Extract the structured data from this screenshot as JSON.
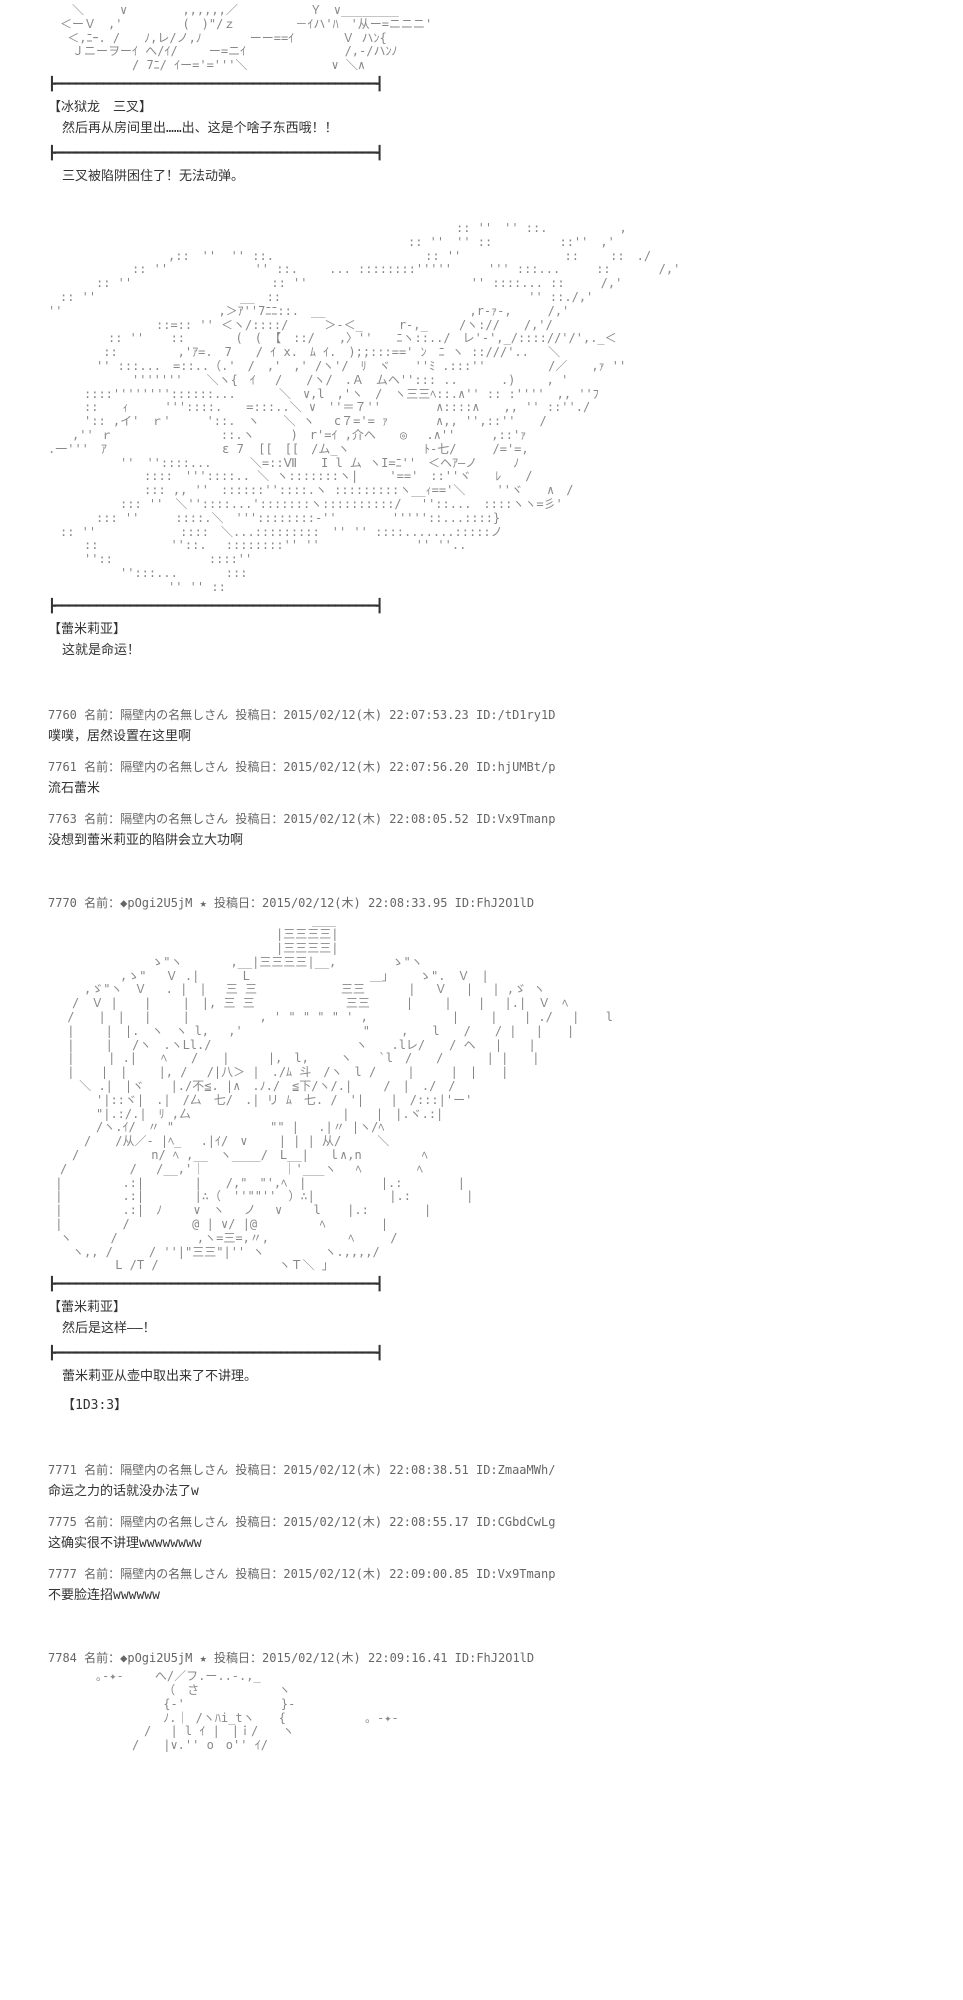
{
  "art": {
    "top_fragment": "　　＼　　　∨　　　　 ,,,,,,／　　　　　　Ｙ　∨________\n　＜ーＶ　,'　　　　　(　)\"/ｚ　　　　　－ｲハ'ﾊ　'从ー=ニニニ'\n　 ＜,ﾆｰ. /　　ﾉ,レ/ノ,ﾉ　　　　ーー==ｲ　　　　Ｖ ハﾝ{\n　　Ｊニーヲーｲ へ/ｲ/　 　ー=ニｲ　　　　　　　  /,-/ハﾝﾉ\n　　　　　　　/ 7ﾆ/ ｲー='='''＼　　　　　　　∨ ＼∧",
    "monster": "　　　　　　　　　　　　　　　　　　　　　　　　　　　　　　　　　　:: ''　'' ::.　　　　　　,\n　　　　　　　　　　　　　　　　　　　　　　　　　　　　　　:: ''　'' ::　　　　　 ::''　,'\n　　　　　　　　　　,::　''  '' ::. 　　　　　　　　　　　　:: ''　　　　　　　　 ::　　 ::　./\n　　　　　　　:: '' 　　　　　　 '' ::. 　　... ::::::::'''''　　　''' :::...　　　::　　　　/,'\n　　　　:: ''　　　　　　　　　　　 :: '' 　　　　　　　　　　　　　'' ::::... ::　　　/,'\n　:: ''　　　　　　　　　　　　__　::　　　　　　　　　　　　　　　　　　　　 '' ::./,'\n''　　　　　　　　　　　　　,＞ｱ''7ﾆﾆ::.　__　　　　　　　　　　　　,r-ｧ-,　　　/,'\n　　　　　　　　　::=:: '' ＜ヽ/::::/　　　＞-＜_　　　r-,_　　 /ヽ://　　/,'/\n　　　　　:: '' 　 :: 　　　 (　( 【　::/　　,〉''　　ﾆヽ::../　レ'-',_/:::://'/',._＜\n　　　　 ::　　　　　,'ｱ=.　7　　/ ｲ x.　ﾑ ｲ.　);;:::==' ﾝ　ﾆ ヽ ::///'.. 　＼\n　　　　'' :::...　=::..（.'　/　,'　,' /ヽ'/　ﾘ　ヾ　　''ﾐ .:::''　　　 　 /／　　,ｧ ''\n　　　　　　　'''''''　　＼ヽ{　ｲ　 /　　/ヽ/　.Ａ　ムヘ''::: ..　　　 .)　　 , '\n　　　::::''''''''::::::...　　　 ＼　∨,l　,'ヽ　/　ヽ三三ﾍ::.∧'' :: :''''　,, ''ﾌ\n　　　::　　ｨ　　　'''::::.　　=:::..＼ ∨　''＝７''　　　　 ∧::::∧　　,, '' ::''./\n　　　':: ,イ'　ｒ'　　　'::.　ヽ　　＼ ヽ　 c７='= ｧ　　　　∧,, '',::''　　/\n　　,'' ｒ　　　　　　　　　::.ヽ　　　)　r'=ｲ ,介ヘ　　◎ 　.∧''　　　,::'ｧ\n.一'''　ｱ　　　　　　　　　 ε 7  [[　[[　/ム_ヽ　　　　 　 ﾄ-七/　　　/='=,\n　　　　　　''　''::::... 　　 ＼=::Ⅶ　　I l ム ヽI=ﾆ''　＜ヘｱ―ノ　　　ﾉ\n　　　　　　　　::::　'''::::.. ＼ ヽ:::::::ヽ|　 　'=='　::''ヾ　　ﾚ　　/\n　　　　　　　　::: ,, ''　::::::''::::.ヽ :::::::::ヽ__ｨ=='＼　　 ''ヾ　　∧　/\n　　　　　　::: ''　＼''::::...':::::::ヽ::::::::::/　 ''::...　::::ヽヽ=彡'\n　　　　::: ''　　　::::.＼　'''::::::::-''　　　　 '''''::...::::}\n　:: ''　　　　　　　::::　＼...:::::::::　'' '' ::::.......:::::ノ\n　　　::　　　　　　''::.　 ::::::::'' ''　　　　　　　　'' ''..\n　　　''::　　　　　　　　::::''\n　　　　　　'':::...　　　　:::\n　　　　　　　　　　'' '' ::",
    "girl": "　　　　　　　　　　　　　　　　　　　　　　＿＿\n　　　　　　　　　　　　　　　　　　　|三三三三|\n　　　　　　　　　　　　　　　　　　　|三三三三|\n　　　　　　　　 ゝ\"ヽ　　　　,__|三三三三|__,　　　　 ゝ\"ヽ\n　　　　　　,ゝ\"　 Ｖ .|　　 　L　　　　　　　　　　＿」　　 ゝ\".　Ｖ　|\n　　　,ゞ\"ヽ　Ｖ　 . |　|　 三 三　　　　　　　三三　　 　| 　Ｖ　 | 　| ,ゞ ヽ\n　　/　Ｖ | 　 |　　 |　|, 三 三 　　　　　　　三三　　　| 　　| 　 | 　|.|　Ｖ　ﾍ\n　 /　　|　|　 |　　 | 　 　 　　, ' \" \" \" \" ' ,　　　　　　　|　　 | 　 | ./ 　| 　 l\n　 | 　　|　|.　ヽ　ヽ l,　 ,'　　　　　　　　　　\"　　 ,　　l　　/　　/ | 　|　　|\n　 | 　　| 　/ヽ　.ヽLl./　　　　　　　　　　　　ヽ　　.lレ/　　/ ヘ 　| 　 |\n　 |  　 | .|　　ﾍ　　/　　|　 　 |,　l,　 　ヽ 　 `l　/　　/　　　 | |　　|\n　 | 　 |　|　　 |, /　 /|八＞ |　./ﾑ 斗　/ヽ　l /　　 |　　　|　|　　|\n　 　＼ .|　|ヾ 　 |./不≦. |∧　.ﾉ./　≦下/ヽ/.| 　　/　|　./　/\n　　　　'|::ヾ|　.|　/厶　七/　.| リ ﾑ　七. /　'| 　 |　/:::|'ー'\n　　　　\"|.:/.|　ﾘ ,厶　　　　　　　　　　　　 | 　 |　|.ヾ.:|\n　　　　/ヽ.ｲ/　〃 \"　　　　　　　　\"\" |　 .|〃 |ヽ/ﾍ\n　　　/　　/从／- |ﾍ_　 .|ｲ/　∨ 　　| | | 从/　　　＼\n　　/　　　　　　n/ ﾍ ,__　ヽ____/　L__|　 ｌ∧,n　　　　　ﾍ\n　/ 　　　　 /　 /__,'｜　　　　　 　｜'___ヽ　 ﾍ 　　　　ﾍ\n |　　　　　.:|　　 　 |　　/,\"　\"',ﾍ　|　　　　　  |.:　　　　 |\n |　　　　　.:|　　 　 |∴（　''\"\"''　）∴|　　　　　  |.:　　　　 |\n |　　　　　.:|　ﾉ　　 ∨　ヽ　 ノ　 ∨ 　　l　  |.:　　　　 |\n |　　　　　/ 　 　　　@ | ∨/ |@　　　 　 ﾍ　　　　 |\n　ヽ　 　 / 　　　　　　,ヽ=三=,〃,　　　　　　 ﾍ　　　/\n　　ヽ,, /　　　/ ''|\"三三\"|'' ヽ　　　　　ヽ.,,,,/\n　　　　　 L /Т /　　　　　　　　　　ヽＴ＼ 」",
    "bottom_fragment": "　　　　｡-✦-　　 へ/／フ.ー..-.,_\n　　　　　　　　　 （　さ　　　　　　 ヽ\n　　　　　　　　　 {-'　　　　　　　　}-\n　　　　　　　　　 ﾉ.｜ /ヽﾊi_tヽ　　{　　　　　　 。-✦-\n　　　　　　　　/　 | l ｲ |　|ｉ/　　ヽ\n　　　　　　　/　　|∨.'' o　o'' ｲ/"
  },
  "dialogue": {
    "d1_speaker": "【冰狱龙　三叉】",
    "d1_line": "然后再从房间里出……出、这是个啥子东西哦！！",
    "d2_line": "三叉被陷阱困住了！无法动弹。",
    "d3_speaker": "【蕾米莉亚】",
    "d3_line": "这就是命运！",
    "d4_speaker": "【蕾米莉亚】",
    "d4_line": "然后是这样――！",
    "d5_line": "蕾米莉亚从壶中取出来了不讲理。",
    "d6_line": "【1D3:3】"
  },
  "posts": {
    "p7760_header": "7760 名前：隔壁内の名無しさん 投稿日：2015/02/12(木) 22:07:53.23 ID:/tD1ry1D",
    "p7760_body": "噗噗，居然设置在这里啊",
    "p7761_header": "7761 名前：隔壁内の名無しさん 投稿日：2015/02/12(木) 22:07:56.20 ID:hjUMBt/p",
    "p7761_body": "流石蕾米",
    "p7763_header": "7763 名前：隔壁内の名無しさん 投稿日：2015/02/12(木) 22:08:05.52 ID:Vx9Tmanp",
    "p7763_body": "没想到蕾米莉亚的陷阱会立大功啊",
    "p7770_header": "7770 名前：◆pOgi2U5jM ★ 投稿日：2015/02/12(木) 22:08:33.95 ID:FhJ2O1lD",
    "p7771_header": "7771 名前：隔壁内の名無しさん 投稿日：2015/02/12(木) 22:08:38.51 ID:ZmaaMWh/",
    "p7771_body": "命运之力的话就没办法了w",
    "p7775_header": "7775 名前：隔壁内の名無しさん 投稿日：2015/02/12(木) 22:08:55.17 ID:CGbdCwLg",
    "p7775_body": "这确实很不讲理wwwwwwww",
    "p7777_header": "7777 名前：隔壁内の名無しさん 投稿日：2015/02/12(木) 22:09:00.85 ID:Vx9Tmanp",
    "p7777_body": "不要脸连招wwwwww",
    "p7784_header": "7784 名前：◆pOgi2U5jM ★ 投稿日：2015/02/12(木) 22:09:16.41 ID:FhJ2O1lD"
  },
  "divider": "┣━━━━━━━━━━━━━━━━━━━━━━━━━━━━━━━━━━━━━━━━━━━━━━━┫"
}
